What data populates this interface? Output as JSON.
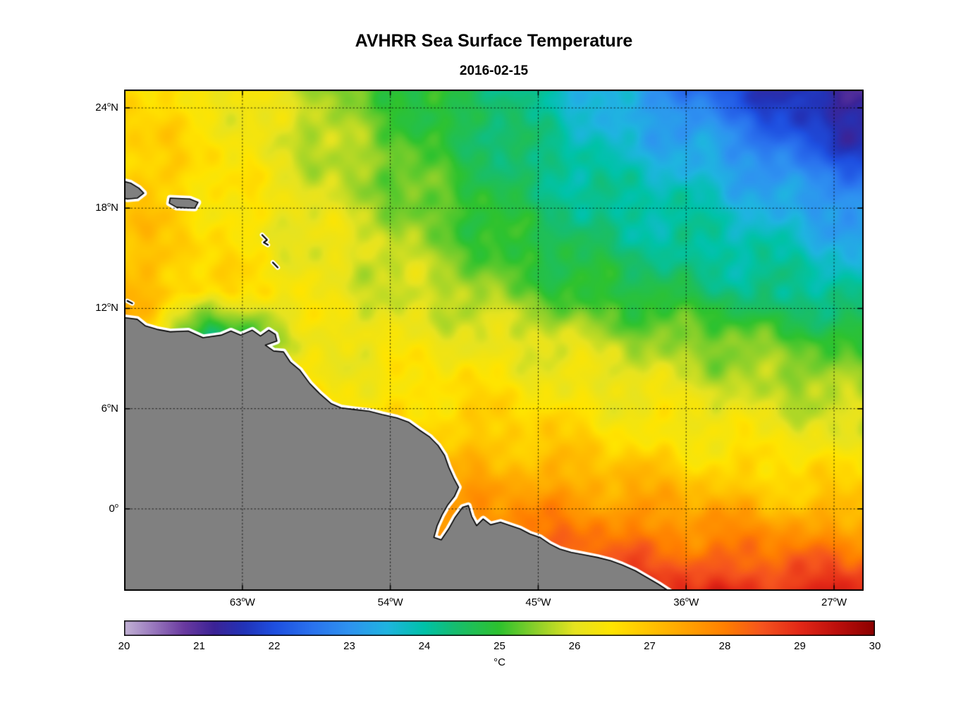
{
  "title": "AVHRR Sea Surface Temperature",
  "subtitle": "2016-02-15",
  "colorbar": {
    "unit": "°C",
    "min": 20,
    "max": 30,
    "ticks": [
      20,
      21,
      22,
      23,
      24,
      25,
      26,
      27,
      28,
      29,
      30
    ]
  },
  "chart_data": {
    "type": "heatmap",
    "title": "AVHRR Sea Surface Temperature",
    "subtitle": "2016-02-15",
    "variable": "sea surface temperature",
    "units": "°C",
    "value_range": [
      20,
      30
    ],
    "bounds": {
      "lon_min": -70.2,
      "lon_max": -25.2,
      "lat_min": -4.9,
      "lat_max": 25.1
    },
    "lat_ticks": [
      {
        "deg": "24",
        "hemi": "N",
        "value": 24
      },
      {
        "deg": "18",
        "hemi": "N",
        "value": 18
      },
      {
        "deg": "12",
        "hemi": "N",
        "value": 12
      },
      {
        "deg": "6",
        "hemi": "N",
        "value": 6
      },
      {
        "deg": "0",
        "hemi": "",
        "value": 0
      }
    ],
    "lon_ticks": [
      {
        "deg": "63",
        "hemi": "W",
        "value": -63
      },
      {
        "deg": "54",
        "hemi": "W",
        "value": -54
      },
      {
        "deg": "45",
        "hemi": "W",
        "value": -45
      },
      {
        "deg": "36",
        "hemi": "W",
        "value": -36
      },
      {
        "deg": "27",
        "hemi": "W",
        "value": -27
      }
    ],
    "grid_lons": [
      -70,
      -65,
      -60,
      -55,
      -50,
      -45,
      -40,
      -35,
      -30,
      -25
    ],
    "grid_lats": [
      -5,
      -2,
      1,
      4,
      7,
      10,
      13,
      16,
      19,
      22,
      25
    ],
    "sst": [
      [
        28.2,
        28.2,
        28.1,
        28.2,
        28.4,
        28.6,
        28.8,
        29.0,
        29.0,
        29.1
      ],
      [
        27.9,
        27.8,
        27.6,
        27.7,
        27.9,
        28.1,
        28.2,
        28.0,
        27.9,
        27.8
      ],
      [
        27.6,
        27.5,
        27.2,
        27.2,
        27.4,
        27.6,
        27.4,
        27.1,
        26.9,
        26.8
      ],
      [
        27.5,
        27.3,
        26.9,
        26.8,
        27.0,
        26.9,
        26.6,
        26.4,
        26.3,
        26.1
      ],
      [
        27.4,
        27.0,
        26.4,
        26.4,
        26.6,
        26.4,
        26.2,
        26.0,
        25.8,
        25.6
      ],
      [
        27.3,
        23.8,
        26.1,
        26.2,
        26.2,
        26.0,
        25.7,
        25.5,
        25.2,
        25.0
      ],
      [
        27.2,
        26.7,
        26.3,
        26.0,
        25.7,
        25.2,
        24.8,
        24.5,
        24.2,
        24.0
      ],
      [
        27.0,
        26.6,
        26.2,
        25.9,
        25.3,
        24.7,
        24.3,
        24.0,
        23.8,
        23.3
      ],
      [
        27.0,
        26.6,
        26.1,
        25.6,
        25.0,
        24.4,
        24.0,
        23.8,
        23.2,
        22.7
      ],
      [
        26.8,
        26.5,
        26.0,
        25.4,
        24.8,
        24.2,
        23.6,
        23.2,
        22.3,
        21.5
      ],
      [
        26.7,
        26.4,
        25.9,
        25.2,
        24.6,
        24.1,
        23.3,
        22.4,
        21.5,
        21.0
      ]
    ],
    "colormap_stops": [
      [
        20.0,
        "#c3b3d5"
      ],
      [
        20.4,
        "#9877bd"
      ],
      [
        20.8,
        "#6a3aa0"
      ],
      [
        21.2,
        "#3c2396"
      ],
      [
        21.6,
        "#2233b8"
      ],
      [
        22.0,
        "#1e4fe0"
      ],
      [
        22.5,
        "#2a72ee"
      ],
      [
        23.0,
        "#2e93f0"
      ],
      [
        23.5,
        "#1fb4e0"
      ],
      [
        24.0,
        "#00c2a8"
      ],
      [
        24.4,
        "#16bd70"
      ],
      [
        25.0,
        "#2ec22e"
      ],
      [
        25.5,
        "#8ed02a"
      ],
      [
        26.0,
        "#e6e320"
      ],
      [
        26.5,
        "#ffe400"
      ],
      [
        27.0,
        "#ffc300"
      ],
      [
        27.5,
        "#ffa200"
      ],
      [
        28.0,
        "#ff7f00"
      ],
      [
        28.5,
        "#f5541e"
      ],
      [
        29.0,
        "#e32817"
      ],
      [
        29.5,
        "#bc0f0c"
      ],
      [
        30.0,
        "#8b0000"
      ]
    ],
    "land": {
      "fill": "#808080",
      "coast": "#000000",
      "halo": "#ffffff",
      "mainland": [
        [
          -71.5,
          11.6
        ],
        [
          -70.2,
          11.45
        ],
        [
          -69.4,
          11.35
        ],
        [
          -68.9,
          10.95
        ],
        [
          -68.2,
          10.75
        ],
        [
          -67.4,
          10.6
        ],
        [
          -66.3,
          10.65
        ],
        [
          -65.4,
          10.25
        ],
        [
          -64.3,
          10.4
        ],
        [
          -63.7,
          10.65
        ],
        [
          -63.1,
          10.4
        ],
        [
          -62.4,
          10.7
        ],
        [
          -61.9,
          10.35
        ],
        [
          -61.4,
          10.7
        ],
        [
          -61.0,
          10.45
        ],
        [
          -60.9,
          10.05
        ],
        [
          -61.6,
          9.8
        ],
        [
          -61.1,
          9.45
        ],
        [
          -60.5,
          9.4
        ],
        [
          -60.1,
          8.8
        ],
        [
          -59.5,
          8.3
        ],
        [
          -58.9,
          7.5
        ],
        [
          -58.3,
          6.9
        ],
        [
          -57.6,
          6.3
        ],
        [
          -57.0,
          6.05
        ],
        [
          -56.2,
          5.95
        ],
        [
          -55.3,
          5.85
        ],
        [
          -54.5,
          5.65
        ],
        [
          -53.6,
          5.45
        ],
        [
          -52.9,
          5.2
        ],
        [
          -52.2,
          4.7
        ],
        [
          -51.6,
          4.3
        ],
        [
          -51.1,
          3.8
        ],
        [
          -50.7,
          3.2
        ],
        [
          -50.45,
          2.5
        ],
        [
          -50.15,
          1.85
        ],
        [
          -49.85,
          1.3
        ],
        [
          -50.1,
          0.75
        ],
        [
          -50.5,
          0.25
        ],
        [
          -50.85,
          -0.35
        ],
        [
          -51.15,
          -1.0
        ],
        [
          -51.35,
          -1.7
        ],
        [
          -50.9,
          -1.85
        ],
        [
          -50.45,
          -1.2
        ],
        [
          -50.05,
          -0.5
        ],
        [
          -49.6,
          0.1
        ],
        [
          -49.25,
          0.2
        ],
        [
          -49.05,
          -0.45
        ],
        [
          -48.75,
          -1.0
        ],
        [
          -48.35,
          -0.6
        ],
        [
          -47.9,
          -0.95
        ],
        [
          -47.3,
          -0.8
        ],
        [
          -46.7,
          -1.0
        ],
        [
          -46.1,
          -1.2
        ],
        [
          -45.5,
          -1.5
        ],
        [
          -44.9,
          -1.7
        ],
        [
          -44.3,
          -2.1
        ],
        [
          -43.7,
          -2.4
        ],
        [
          -43.0,
          -2.6
        ],
        [
          -42.2,
          -2.75
        ],
        [
          -41.4,
          -2.9
        ],
        [
          -40.6,
          -3.1
        ],
        [
          -39.9,
          -3.35
        ],
        [
          -39.1,
          -3.7
        ],
        [
          -38.4,
          -4.1
        ],
        [
          -37.7,
          -4.5
        ],
        [
          -37.0,
          -4.95
        ],
        [
          -36.4,
          -5.6
        ],
        [
          -36.0,
          -7.0
        ],
        [
          -72.5,
          -7.0
        ],
        [
          -72.5,
          11.6
        ]
      ],
      "islands": [
        [
          [
            -70.6,
            19.7
          ],
          [
            -69.8,
            19.5
          ],
          [
            -69.3,
            19.2
          ],
          [
            -69.0,
            18.9
          ],
          [
            -69.4,
            18.6
          ],
          [
            -70.0,
            18.55
          ],
          [
            -70.6,
            18.7
          ]
        ],
        [
          [
            -67.4,
            18.6
          ],
          [
            -66.2,
            18.55
          ],
          [
            -65.7,
            18.35
          ],
          [
            -65.9,
            18.0
          ],
          [
            -67.0,
            18.05
          ],
          [
            -67.45,
            18.3
          ]
        ]
      ],
      "island_dashes": [
        [
          [
            -61.8,
            16.4
          ],
          [
            -61.5,
            16.1
          ],
          [
            -61.7,
            15.95
          ],
          [
            -61.45,
            15.8
          ]
        ],
        [
          [
            -61.15,
            14.75
          ],
          [
            -60.85,
            14.45
          ]
        ],
        [
          [
            -70.0,
            12.45
          ],
          [
            -69.7,
            12.3
          ]
        ]
      ]
    }
  }
}
